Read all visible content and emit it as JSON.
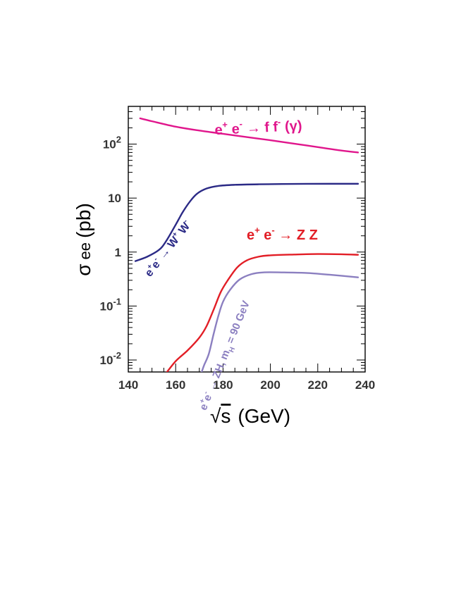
{
  "chart_data": {
    "type": "line",
    "xlabel_prefix": "√",
    "xlabel_var": "s",
    "xlabel_unit": "(GeV)",
    "ylabel_sym": "σ",
    "ylabel_sub": "ee",
    "ylabel_unit": "(pb)",
    "xlim": [
      140,
      240
    ],
    "ylim": [
      0.006,
      500
    ],
    "yscale": "log",
    "x_ticks": [
      {
        "value": 140,
        "label": "140"
      },
      {
        "value": 160,
        "label": "160"
      },
      {
        "value": 180,
        "label": "180"
      },
      {
        "value": 200,
        "label": "200"
      },
      {
        "value": 220,
        "label": "220"
      },
      {
        "value": 240,
        "label": "240"
      }
    ],
    "y_ticks": [
      {
        "value": 0.01,
        "base": "10",
        "exp": "-2"
      },
      {
        "value": 0.1,
        "base": "10",
        "exp": "-1"
      },
      {
        "value": 1,
        "base": "1",
        "exp": ""
      },
      {
        "value": 10,
        "base": "10",
        "exp": ""
      },
      {
        "value": 100,
        "base": "10",
        "exp": "2"
      }
    ],
    "series": [
      {
        "id": "ffbar",
        "color": "#e0168c",
        "points": [
          [
            145,
            300
          ],
          [
            150,
            265
          ],
          [
            160,
            210
          ],
          [
            170,
            178
          ],
          [
            180,
            155
          ],
          [
            190,
            135
          ],
          [
            200,
            118
          ],
          [
            210,
            102
          ],
          [
            220,
            88
          ],
          [
            230,
            76
          ],
          [
            237,
            70
          ]
        ]
      },
      {
        "id": "ww",
        "color": "#2b2a86",
        "points": [
          [
            143,
            0.68
          ],
          [
            148,
            0.82
          ],
          [
            153,
            1.1
          ],
          [
            156,
            1.6
          ],
          [
            160,
            3.2
          ],
          [
            163,
            5.5
          ],
          [
            166,
            8.6
          ],
          [
            169,
            12
          ],
          [
            173,
            15
          ],
          [
            178,
            16.8
          ],
          [
            185,
            17.6
          ],
          [
            195,
            18.0
          ],
          [
            210,
            18.3
          ],
          [
            225,
            18.4
          ],
          [
            237,
            18.4
          ]
        ]
      },
      {
        "id": "zz",
        "color": "#e21e26",
        "points": [
          [
            155,
            0.005
          ],
          [
            160,
            0.0095
          ],
          [
            165,
            0.015
          ],
          [
            170,
            0.026
          ],
          [
            173,
            0.042
          ],
          [
            176,
            0.085
          ],
          [
            179,
            0.18
          ],
          [
            182,
            0.3
          ],
          [
            186,
            0.52
          ],
          [
            190,
            0.7
          ],
          [
            195,
            0.82
          ],
          [
            200,
            0.87
          ],
          [
            210,
            0.9
          ],
          [
            220,
            0.92
          ],
          [
            230,
            0.91
          ],
          [
            237,
            0.89
          ]
        ]
      },
      {
        "id": "zh",
        "color": "#8b7fc0",
        "points": [
          [
            171,
            0.006
          ],
          [
            172,
            0.008
          ],
          [
            174,
            0.013
          ],
          [
            176,
            0.03
          ],
          [
            178,
            0.065
          ],
          [
            180,
            0.12
          ],
          [
            183,
            0.2
          ],
          [
            187,
            0.31
          ],
          [
            192,
            0.39
          ],
          [
            197,
            0.42
          ],
          [
            205,
            0.42
          ],
          [
            215,
            0.41
          ],
          [
            225,
            0.38
          ],
          [
            237,
            0.34
          ]
        ]
      }
    ],
    "annotations": [
      {
        "id": "ffbar",
        "color": "#e0168c",
        "x": 195,
        "y": 165,
        "angle": -3,
        "size": 20,
        "parts": [
          [
            "e",
            "n"
          ],
          [
            "+",
            "sup"
          ],
          [
            " e",
            "n"
          ],
          [
            "-",
            "sup"
          ],
          [
            " → ",
            "n"
          ],
          [
            "f f",
            "n"
          ],
          [
            "-",
            "sup"
          ],
          [
            " (γ)",
            "n"
          ]
        ]
      },
      {
        "id": "ww",
        "color": "#2b2a86",
        "x": 158,
        "y": 1.05,
        "angle": -52,
        "size": 16,
        "parts": [
          [
            "e",
            "n"
          ],
          [
            "+",
            "sup"
          ],
          [
            "e",
            "n"
          ],
          [
            "-",
            "sup"
          ],
          [
            " → W",
            "n"
          ],
          [
            "+",
            "sup"
          ],
          [
            " W",
            "n"
          ],
          [
            "-",
            "sup"
          ]
        ]
      },
      {
        "id": "zz",
        "color": "#e21e26",
        "x": 205,
        "y": 1.7,
        "angle": 0,
        "size": 20,
        "parts": [
          [
            "e",
            "n"
          ],
          [
            "+",
            "sup"
          ],
          [
            " e",
            "n"
          ],
          [
            "-",
            "sup"
          ],
          [
            " → Z  Z",
            "n"
          ]
        ]
      },
      {
        "id": "zh",
        "color": "#8b7fc0",
        "x": 182,
        "y": 0.0115,
        "angle": -68,
        "size": 15,
        "parts": [
          [
            "e",
            "n"
          ],
          [
            "+",
            "sup"
          ],
          [
            "e",
            "n"
          ],
          [
            "-",
            "sup"
          ],
          [
            " → ZH, m",
            "n"
          ],
          [
            "H",
            "sub"
          ],
          [
            " = 90 GeV",
            "n"
          ]
        ]
      }
    ]
  }
}
